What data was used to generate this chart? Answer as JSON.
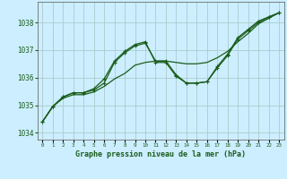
{
  "title": "Graphe pression niveau de la mer (hPa)",
  "xlim": [
    -0.5,
    23.5
  ],
  "ylim": [
    1033.75,
    1038.75
  ],
  "yticks": [
    1034,
    1035,
    1036,
    1037,
    1038
  ],
  "xticks": [
    0,
    1,
    2,
    3,
    4,
    5,
    6,
    7,
    8,
    9,
    10,
    11,
    12,
    13,
    14,
    15,
    16,
    17,
    18,
    19,
    20,
    21,
    22,
    23
  ],
  "bg_color": "#cceeff",
  "grid_color": "#aacccc",
  "line_color": "#1a5c1a",
  "series1_x": [
    0,
    1,
    2,
    3,
    4,
    5,
    6,
    7,
    8,
    9,
    10,
    11,
    12,
    13,
    14,
    15,
    16,
    17,
    18,
    19,
    20,
    21,
    22,
    23
  ],
  "series1_y": [
    1034.4,
    1034.95,
    1035.3,
    1035.45,
    1035.45,
    1035.55,
    1035.8,
    1036.55,
    1036.9,
    1037.15,
    1037.25,
    1036.6,
    1036.6,
    1036.1,
    1035.8,
    1035.8,
    1035.85,
    1036.35,
    1036.8,
    1037.4,
    1037.7,
    1038.0,
    1038.2,
    1038.35
  ],
  "series2_x": [
    0,
    1,
    2,
    3,
    4,
    5,
    6,
    7,
    8,
    9,
    10,
    11,
    12,
    13,
    14,
    15,
    16,
    17,
    18,
    19,
    20,
    21,
    22,
    23
  ],
  "series2_y": [
    1034.4,
    1034.95,
    1035.25,
    1035.38,
    1035.38,
    1035.48,
    1035.68,
    1035.95,
    1036.15,
    1036.45,
    1036.55,
    1036.6,
    1036.6,
    1036.55,
    1036.5,
    1036.5,
    1036.55,
    1036.72,
    1036.95,
    1037.3,
    1037.6,
    1037.95,
    1038.15,
    1038.35
  ],
  "series3_x": [
    0,
    1,
    2,
    3,
    4,
    5,
    6,
    7,
    8,
    9,
    10,
    11,
    12,
    13,
    14,
    15,
    16,
    17,
    18,
    19,
    20,
    21,
    22,
    23
  ],
  "series3_y": [
    1034.4,
    1034.95,
    1035.3,
    1035.45,
    1035.45,
    1035.6,
    1035.95,
    1036.6,
    1036.95,
    1037.2,
    1037.3,
    1036.55,
    1036.55,
    1036.05,
    1035.8,
    1035.8,
    1035.85,
    1036.4,
    1036.85,
    1037.45,
    1037.75,
    1038.05,
    1038.2,
    1038.35
  ]
}
